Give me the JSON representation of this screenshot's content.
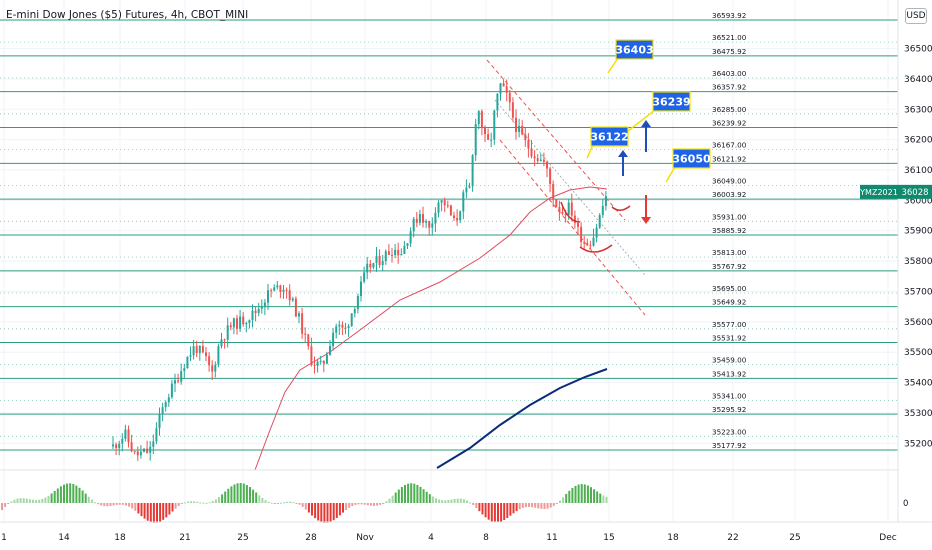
{
  "header": {
    "title": "E-mini Dow Jones ($5) Futures, 4h, CBOT_MINI",
    "currency": "USD"
  },
  "colors": {
    "up": "#26a69a",
    "down": "#ef5350",
    "level_line": "#2e9e7e",
    "ma_short": "#e04a5e",
    "ma_long": "#0d2b7a",
    "channel": "#ef5350",
    "callout_bg": "#1e63e8",
    "callout_border": "#f2e205",
    "arrow_up": "#1d4fb5",
    "arrow_down": "#e53935",
    "price_tag": "#0f8a6e"
  },
  "chart_data": {
    "type": "candlestick",
    "symbol_tag": "YMZ2021",
    "last_price": "36028",
    "ylim": [
      35140,
      36640
    ],
    "x_tick_labels": [
      "1",
      "14",
      "18",
      "21",
      "25",
      "28",
      "Nov",
      "4",
      "8",
      "11",
      "15",
      "18",
      "22",
      "25",
      "Dec"
    ],
    "y_axis_labels": [
      36500,
      36400,
      36300,
      36200,
      36100,
      36000,
      35900,
      35800,
      35700,
      35600,
      35500,
      35400,
      35300,
      35200
    ],
    "level_values": [
      36593.92,
      36521.0,
      36475.92,
      36403.0,
      36357.92,
      36285.0,
      36239.92,
      36167.0,
      36121.92,
      36049.0,
      36003.92,
      35931.0,
      35885.92,
      35813.0,
      35767.92,
      35695.0,
      35649.92,
      35577.0,
      35531.92,
      35459.0,
      35413.92,
      35341.0,
      35295.92,
      35223.0,
      35177.92
    ],
    "callouts": [
      {
        "label": "36403",
        "price": 36403
      },
      {
        "label": "36239",
        "price": 36239
      },
      {
        "label": "36122",
        "price": 36122
      },
      {
        "label": "36050",
        "price": 36050
      }
    ],
    "oscillator_zero_label": "0"
  }
}
